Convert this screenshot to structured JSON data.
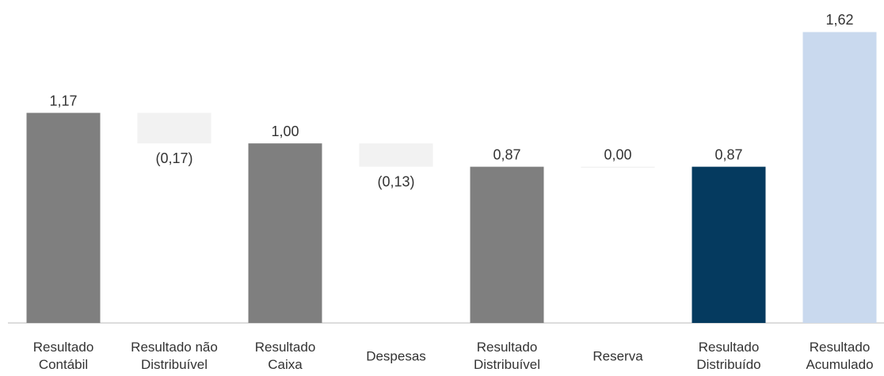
{
  "chart_data": {
    "type": "waterfall",
    "categories": [
      "Resultado\nContábil",
      "Resultado não\nDistribuível",
      "Resultado\nCaixa",
      "Despesas",
      "Resultado\nDistribuível",
      "Reserva",
      "Resultado\nDistribuído",
      "Resultado\nAcumulado"
    ],
    "values": [
      1.17,
      -0.17,
      1.0,
      -0.13,
      0.87,
      0.0,
      0.87,
      1.62
    ],
    "value_labels": [
      "1,17",
      "(0,17)",
      "1,00",
      "(0,13)",
      "0,87",
      "0,00",
      "0,87",
      "1,62"
    ],
    "measure": [
      "absolute",
      "relative",
      "absolute",
      "relative",
      "absolute",
      "relative",
      "absolute",
      "absolute"
    ],
    "colors": [
      "#7f7f7f",
      "#f2f2f2",
      "#7f7f7f",
      "#f2f2f2",
      "#7f7f7f",
      "#f2f2f2",
      "#053a5f",
      "#c9d9ee"
    ],
    "ylim": [
      0,
      1.75
    ]
  }
}
